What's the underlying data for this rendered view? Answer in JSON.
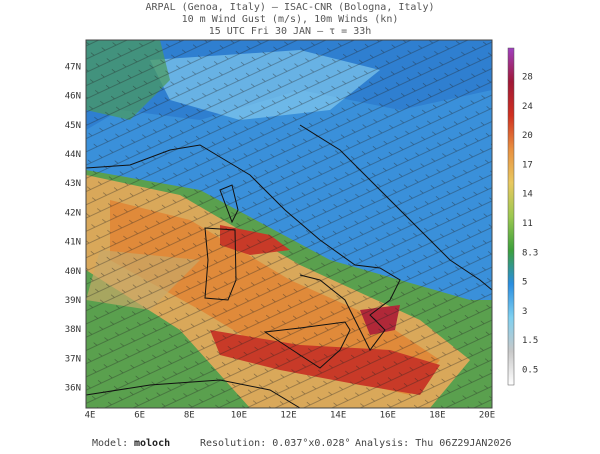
{
  "header": {
    "lines": [
      "ARPAL (Genoa, Italy)  –  ISAC-CNR (Bologna, Italy)",
      "10 m Wind Gust (m/s), 10m Winds (kn)",
      "15 UTC Fri 30 JAN  –  τ = 33h"
    ]
  },
  "map": {
    "latitude_labels": [
      "47N",
      "46N",
      "45N",
      "44N",
      "43N",
      "42N",
      "41N",
      "40N",
      "39N",
      "38N",
      "37N",
      "36N"
    ],
    "longitude_labels": [
      "4E",
      "6E",
      "8E",
      "10E",
      "12E",
      "14E",
      "16E",
      "18E",
      "20E"
    ]
  },
  "colorbar": {
    "labels": [
      "28",
      "24",
      "20",
      "17",
      "14",
      "11",
      "8.3",
      "5",
      "3",
      "1.5",
      "0.5"
    ]
  },
  "footer": {
    "model_label": "Model:",
    "model": "moloch",
    "resolution": "Resolution: 0.037°x0.028°",
    "analysis": "Analysis: Thu 06Z29JAN2026"
  }
}
